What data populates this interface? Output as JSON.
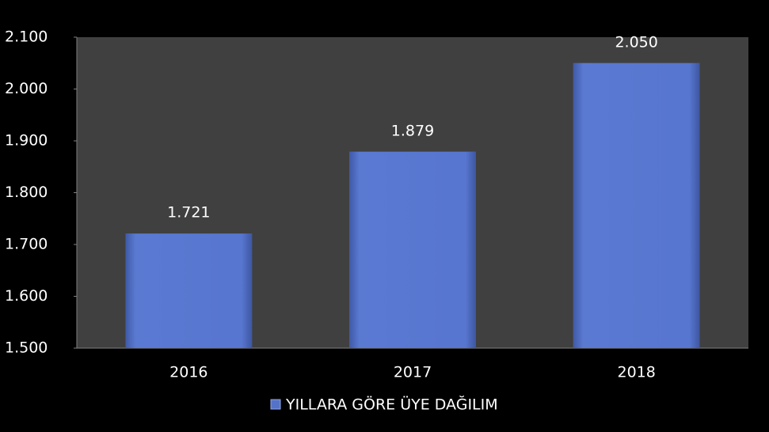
{
  "chart_data": {
    "type": "bar",
    "categories": [
      "2016",
      "2017",
      "2018"
    ],
    "series": [
      {
        "name": "YILLARA GÖRE ÜYE DAĞILIM",
        "color": "#5472c8",
        "values": [
          1721,
          1879,
          2050
        ],
        "value_labels": [
          "1.721",
          "1.879",
          "2.050"
        ]
      }
    ],
    "ylim": [
      1500,
      2100
    ],
    "yticks": [
      {
        "value": 1500,
        "label": "1.500"
      },
      {
        "value": 1600,
        "label": "1.600"
      },
      {
        "value": 1700,
        "label": "1.700"
      },
      {
        "value": 1800,
        "label": "1.800"
      },
      {
        "value": 1900,
        "label": "1.900"
      },
      {
        "value": 2000,
        "label": "2.000"
      },
      {
        "value": 2100,
        "label": "2.100"
      }
    ],
    "legend": "bottom"
  }
}
